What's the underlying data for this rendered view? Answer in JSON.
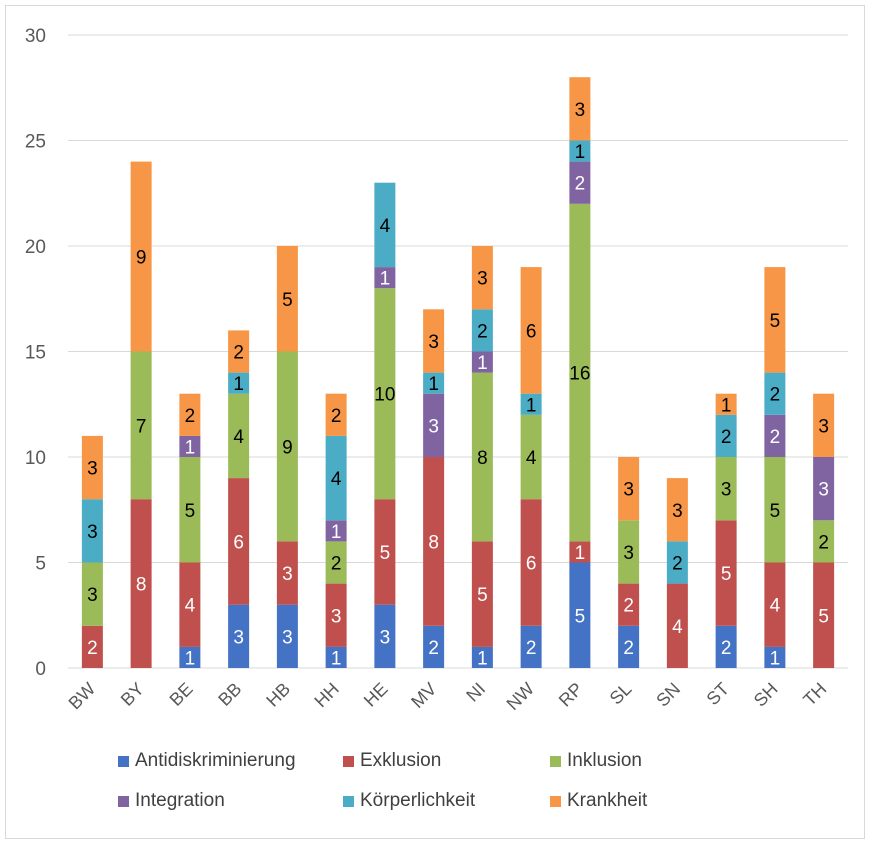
{
  "chart_data": {
    "type": "bar",
    "stacked": true,
    "categories": [
      "BW",
      "BY",
      "BE",
      "BB",
      "HB",
      "HH",
      "HE",
      "MV",
      "NI",
      "NW",
      "RP",
      "SL",
      "SN",
      "ST",
      "SH",
      "TH"
    ],
    "series": [
      {
        "name": "Antidiskriminierung",
        "color": "#4472c4",
        "values": [
          0,
          0,
          1,
          3,
          3,
          1,
          3,
          2,
          1,
          2,
          5,
          2,
          0,
          2,
          1,
          0
        ]
      },
      {
        "name": "Exklusion",
        "color": "#c0504d",
        "values": [
          2,
          8,
          4,
          6,
          3,
          3,
          5,
          8,
          5,
          6,
          1,
          2,
          4,
          5,
          4,
          5
        ]
      },
      {
        "name": "Inklusion",
        "color": "#9bbb59",
        "values": [
          3,
          7,
          5,
          4,
          9,
          2,
          10,
          0,
          8,
          4,
          16,
          3,
          0,
          3,
          5,
          2
        ]
      },
      {
        "name": "Integration",
        "color": "#8064a2",
        "values": [
          0,
          0,
          1,
          0,
          0,
          1,
          1,
          3,
          1,
          0,
          2,
          0,
          0,
          0,
          2,
          3
        ]
      },
      {
        "name": "Körperlichkeit",
        "color": "#4bacc6",
        "values": [
          3,
          0,
          0,
          1,
          0,
          4,
          4,
          1,
          2,
          1,
          1,
          0,
          2,
          2,
          2,
          0
        ]
      },
      {
        "name": "Krankheit",
        "color": "#f79646",
        "values": [
          3,
          9,
          2,
          2,
          5,
          2,
          0,
          3,
          3,
          6,
          3,
          3,
          3,
          1,
          5,
          3
        ]
      }
    ],
    "ylim": [
      0,
      30
    ],
    "yticks": [
      0,
      5,
      10,
      15,
      20,
      25,
      30
    ],
    "grid": true,
    "legend_position": "bottom",
    "title": "",
    "xlabel": "",
    "ylabel": ""
  }
}
